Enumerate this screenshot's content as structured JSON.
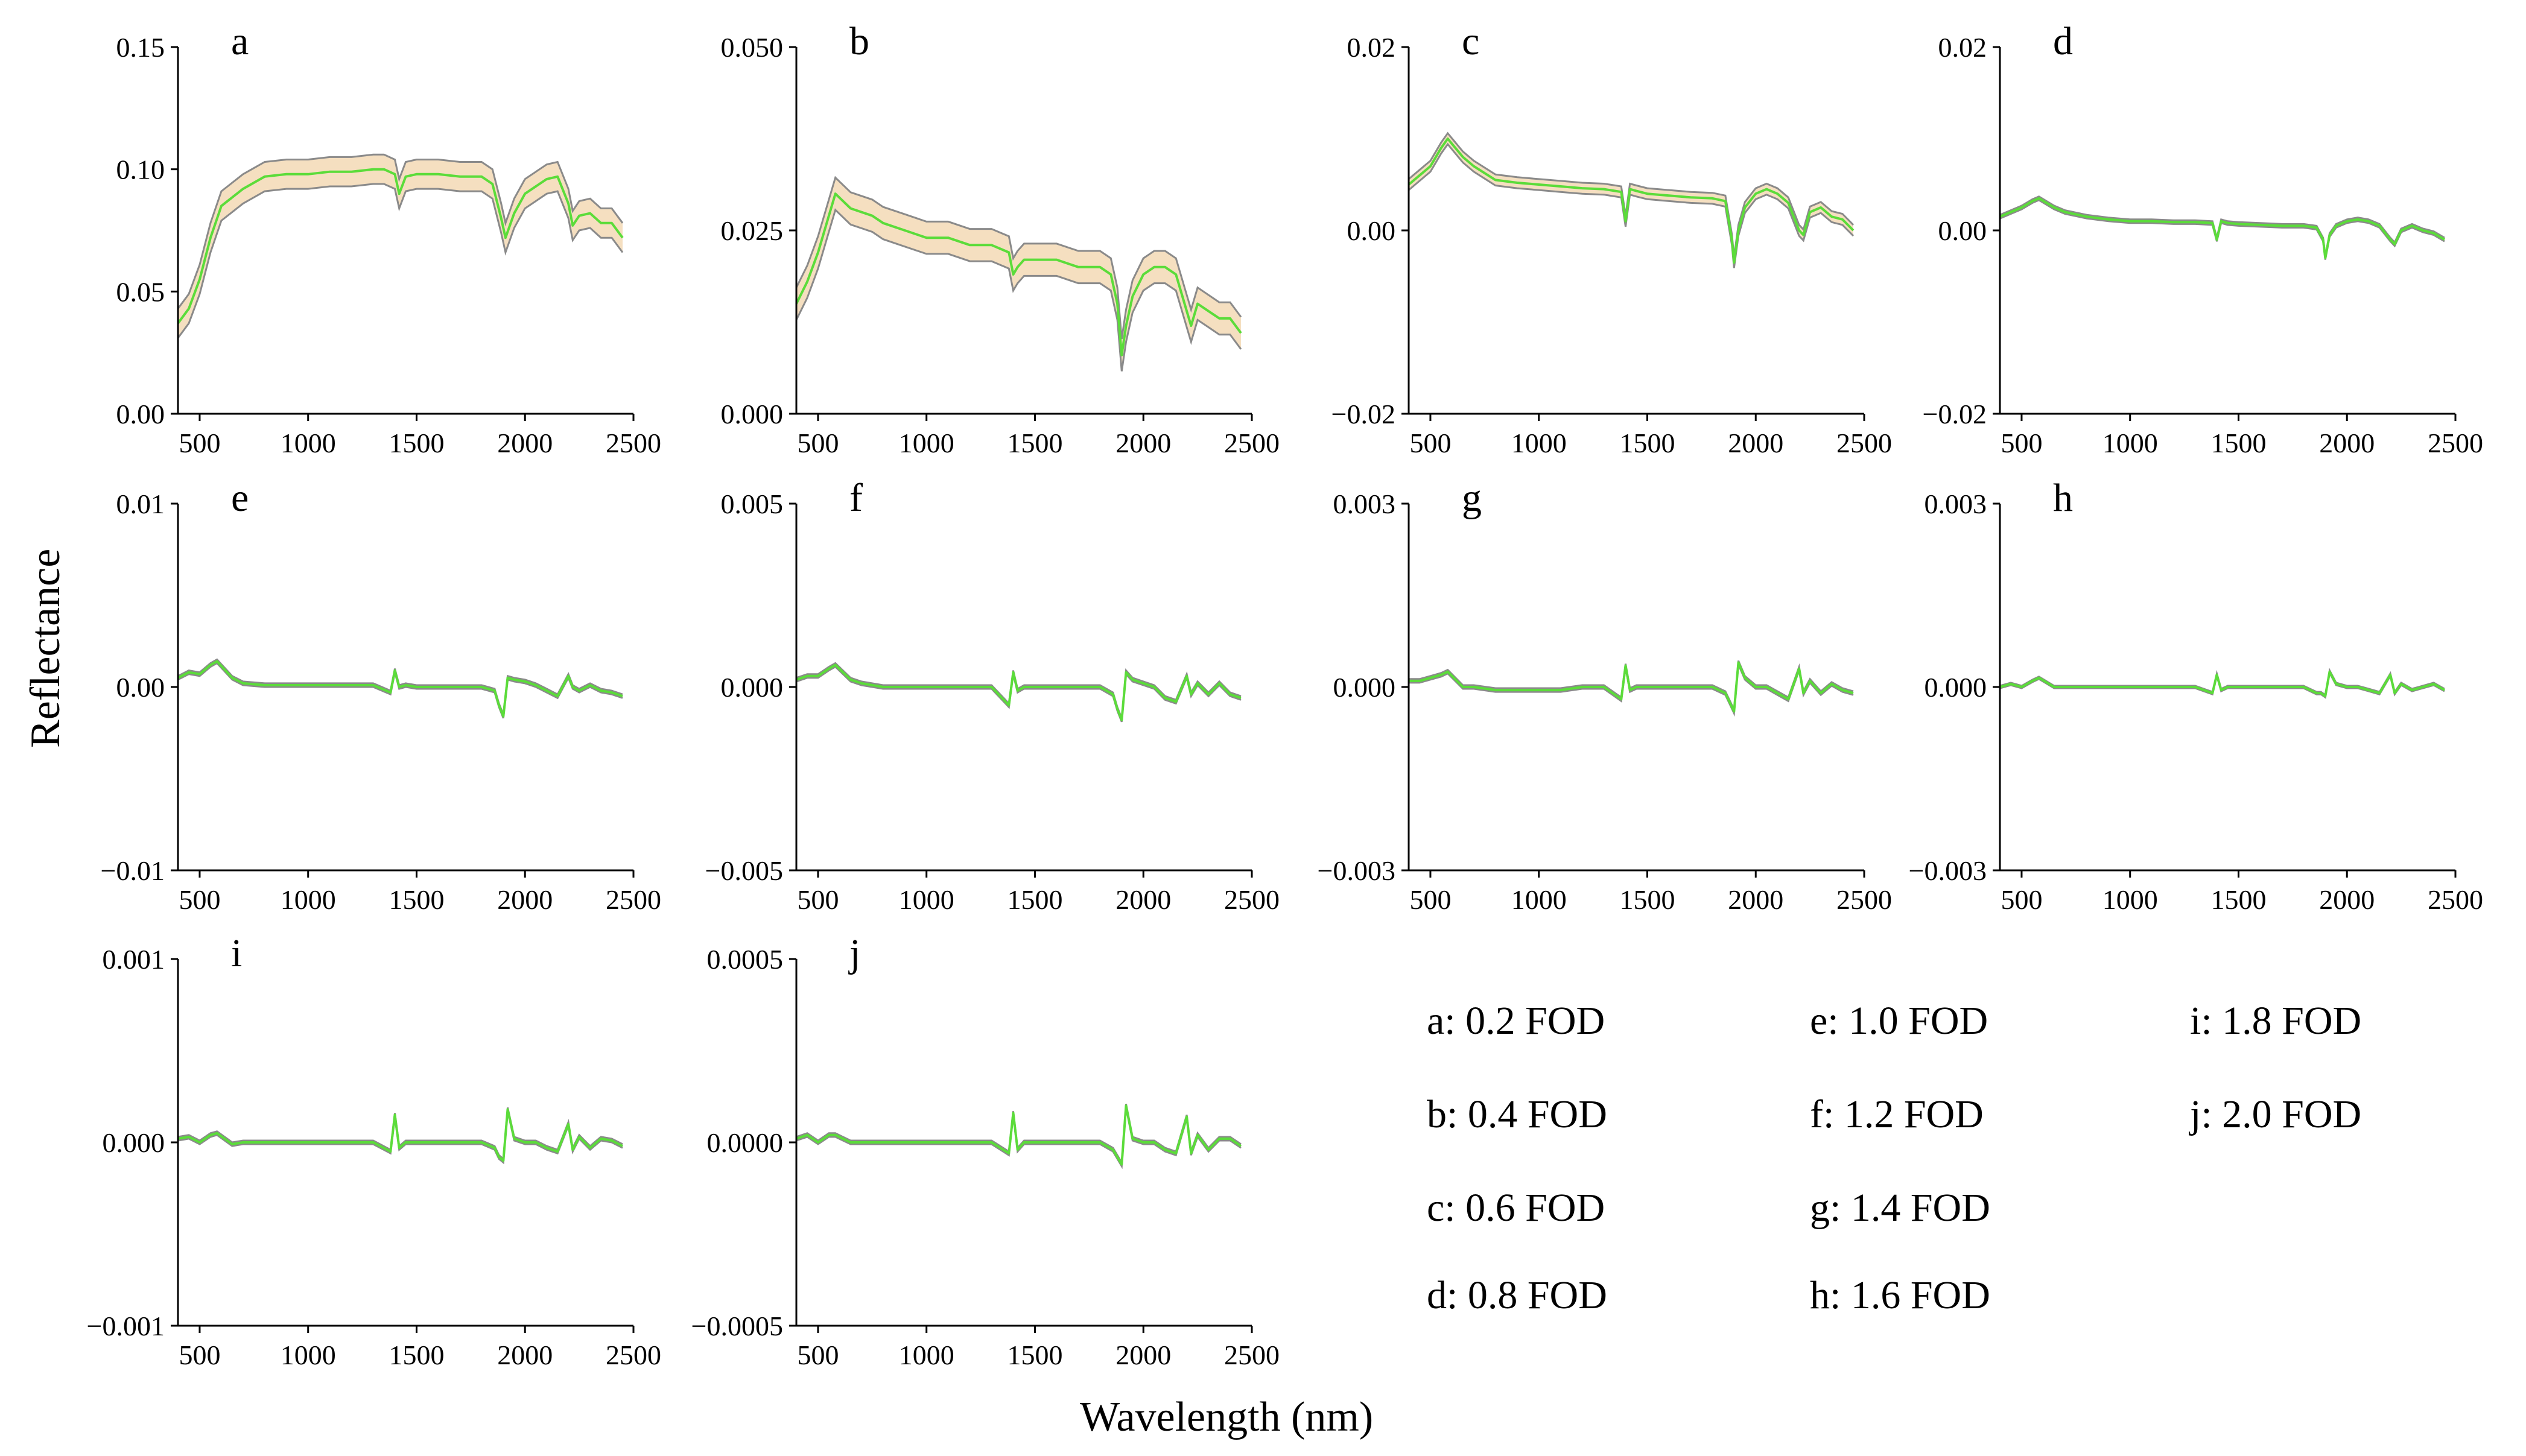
{
  "figure": {
    "ylabel": "Reflectance",
    "xlabel": "Wavelength (nm)",
    "colors": {
      "mean_line": "#5bdc3a",
      "band_fill": "#f5dfc0",
      "band_edge": "#8a8a8a",
      "axis": "#000000"
    }
  },
  "legend": [
    "a: 0.2 FOD",
    "b: 0.4 FOD",
    "c: 0.6 FOD",
    "d: 0.8 FOD",
    "e: 1.0 FOD",
    "f: 1.2 FOD",
    "g: 1.4 FOD",
    "h: 1.6 FOD",
    "i: 1.8 FOD",
    "j: 2.0 FOD"
  ],
  "chart_data": [
    {
      "type": "area",
      "panel": "a",
      "xlim": [
        400,
        2500
      ],
      "xticks": [
        500,
        1000,
        1500,
        2000,
        2500
      ],
      "ylim": [
        0,
        0.15
      ],
      "yticks": [
        0,
        0.05,
        0.1,
        0.15
      ],
      "ytick_labels": [
        "0.00",
        "0.05",
        "0.10",
        "0.15"
      ],
      "band_halfwidth": 0.006,
      "series": {
        "name": "mean",
        "x": [
          400,
          450,
          500,
          550,
          600,
          700,
          800,
          900,
          1000,
          1100,
          1200,
          1300,
          1350,
          1400,
          1420,
          1450,
          1500,
          1600,
          1700,
          1800,
          1850,
          1890,
          1910,
          1950,
          2000,
          2100,
          2150,
          2200,
          2220,
          2250,
          2300,
          2350,
          2400,
          2450
        ],
        "y": [
          0.037,
          0.043,
          0.055,
          0.072,
          0.085,
          0.092,
          0.097,
          0.098,
          0.098,
          0.099,
          0.099,
          0.1,
          0.1,
          0.098,
          0.09,
          0.097,
          0.098,
          0.098,
          0.097,
          0.097,
          0.094,
          0.08,
          0.072,
          0.082,
          0.09,
          0.096,
          0.097,
          0.086,
          0.077,
          0.081,
          0.082,
          0.078,
          0.078,
          0.072
        ]
      }
    },
    {
      "type": "area",
      "panel": "b",
      "xlim": [
        400,
        2500
      ],
      "xticks": [
        500,
        1000,
        1500,
        2000,
        2500
      ],
      "ylim": [
        0,
        0.05
      ],
      "yticks": [
        0,
        0.025,
        0.05
      ],
      "ytick_labels": [
        "0.000",
        "0.025",
        "0.050"
      ],
      "band_halfwidth": 0.0022,
      "series": {
        "name": "mean",
        "x": [
          400,
          450,
          500,
          550,
          580,
          650,
          750,
          800,
          900,
          1000,
          1100,
          1200,
          1300,
          1380,
          1400,
          1420,
          1450,
          1500,
          1600,
          1700,
          1800,
          1850,
          1880,
          1900,
          1920,
          1950,
          2000,
          2050,
          2100,
          2150,
          2200,
          2220,
          2250,
          2300,
          2350,
          2400,
          2450
        ],
        "y": [
          0.015,
          0.018,
          0.022,
          0.027,
          0.03,
          0.028,
          0.027,
          0.026,
          0.025,
          0.024,
          0.024,
          0.023,
          0.023,
          0.022,
          0.019,
          0.02,
          0.021,
          0.021,
          0.021,
          0.02,
          0.02,
          0.019,
          0.015,
          0.008,
          0.012,
          0.016,
          0.019,
          0.02,
          0.02,
          0.019,
          0.014,
          0.012,
          0.015,
          0.014,
          0.013,
          0.013,
          0.011
        ]
      }
    },
    {
      "type": "line",
      "panel": "c",
      "xlim": [
        400,
        2500
      ],
      "xticks": [
        500,
        1000,
        1500,
        2000,
        2500
      ],
      "ylim": [
        -0.02,
        0.02
      ],
      "yticks": [
        -0.02,
        0,
        0.02
      ],
      "ytick_labels": [
        "−0.02",
        "0.00",
        "0.02"
      ],
      "band_halfwidth": 0.0006,
      "series": {
        "name": "mean",
        "x": [
          400,
          450,
          500,
          550,
          580,
          650,
          700,
          800,
          900,
          1000,
          1100,
          1200,
          1300,
          1380,
          1400,
          1420,
          1450,
          1500,
          1600,
          1700,
          1800,
          1860,
          1890,
          1900,
          1920,
          1950,
          2000,
          2050,
          2100,
          2150,
          2200,
          2220,
          2250,
          2300,
          2350,
          2400,
          2450
        ],
        "y": [
          0.005,
          0.006,
          0.007,
          0.009,
          0.01,
          0.008,
          0.007,
          0.0055,
          0.0052,
          0.005,
          0.0048,
          0.0046,
          0.0045,
          0.0042,
          0.001,
          0.0045,
          0.0043,
          0.004,
          0.0038,
          0.0036,
          0.0035,
          0.0032,
          -0.001,
          -0.0035,
          0.0,
          0.0025,
          0.004,
          0.0045,
          0.004,
          0.003,
          0.0,
          -0.0005,
          0.002,
          0.0025,
          0.0015,
          0.0012,
          0.0
        ]
      }
    },
    {
      "type": "line",
      "panel": "d",
      "xlim": [
        400,
        2500
      ],
      "xticks": [
        500,
        1000,
        1500,
        2000,
        2500
      ],
      "ylim": [
        -0.02,
        0.02
      ],
      "yticks": [
        -0.02,
        0,
        0.02
      ],
      "ytick_labels": [
        "−0.02",
        "0.00",
        "0.02"
      ],
      "band_halfwidth": 0.0002,
      "series": {
        "name": "mean",
        "x": [
          400,
          450,
          500,
          550,
          580,
          650,
          700,
          800,
          900,
          1000,
          1100,
          1200,
          1300,
          1380,
          1400,
          1420,
          1450,
          1500,
          1600,
          1700,
          1800,
          1860,
          1890,
          1900,
          1920,
          1950,
          2000,
          2050,
          2100,
          2150,
          2200,
          2220,
          2250,
          2300,
          2350,
          2400,
          2450
        ],
        "y": [
          0.0015,
          0.002,
          0.0025,
          0.0032,
          0.0035,
          0.0025,
          0.002,
          0.0015,
          0.0012,
          0.001,
          0.001,
          0.0009,
          0.0009,
          0.0008,
          -0.001,
          0.001,
          0.0008,
          0.0007,
          0.0006,
          0.0005,
          0.0005,
          0.0003,
          -0.001,
          -0.003,
          -0.0005,
          0.0005,
          0.001,
          0.0012,
          0.001,
          0.0005,
          -0.001,
          -0.0015,
          0.0,
          0.0005,
          0.0,
          -0.0003,
          -0.001
        ]
      }
    },
    {
      "type": "line",
      "panel": "e",
      "xlim": [
        400,
        2500
      ],
      "xticks": [
        500,
        1000,
        1500,
        2000,
        2500
      ],
      "ylim": [
        -0.01,
        0.01
      ],
      "yticks": [
        -0.01,
        0,
        0.01
      ],
      "ytick_labels": [
        "−0.01",
        "0.00",
        "0.01"
      ],
      "band_halfwidth": 0.0001,
      "series": {
        "name": "mean",
        "x": [
          400,
          450,
          500,
          550,
          580,
          650,
          700,
          800,
          900,
          1000,
          1100,
          1200,
          1300,
          1380,
          1400,
          1420,
          1450,
          1500,
          1600,
          1700,
          1800,
          1860,
          1880,
          1900,
          1920,
          1950,
          2000,
          2050,
          2100,
          2150,
          2200,
          2220,
          2250,
          2300,
          2350,
          2400,
          2450
        ],
        "y": [
          0.0005,
          0.0008,
          0.0007,
          0.0012,
          0.0014,
          0.0005,
          0.0002,
          0.0001,
          0.0001,
          0.0001,
          0.0001,
          0.0001,
          0.0001,
          -0.0003,
          0.0009,
          0.0,
          0.0001,
          0.0,
          0.0,
          0.0,
          0.0,
          -0.0002,
          -0.001,
          -0.0016,
          0.0005,
          0.0004,
          0.0003,
          0.0001,
          -0.0002,
          -0.0005,
          0.0006,
          0.0,
          -0.0002,
          0.0001,
          -0.0002,
          -0.0003,
          -0.0005
        ]
      }
    },
    {
      "type": "line",
      "panel": "f",
      "xlim": [
        400,
        2500
      ],
      "xticks": [
        500,
        1000,
        1500,
        2000,
        2500
      ],
      "ylim": [
        -0.005,
        0.005
      ],
      "yticks": [
        -0.005,
        0,
        0.005
      ],
      "ytick_labels": [
        "−0.005",
        "0.000",
        "0.005"
      ],
      "band_halfwidth": 5e-05,
      "series": {
        "name": "mean",
        "x": [
          400,
          450,
          500,
          550,
          580,
          650,
          700,
          800,
          900,
          1000,
          1100,
          1200,
          1300,
          1380,
          1400,
          1420,
          1450,
          1500,
          1600,
          1700,
          1800,
          1860,
          1880,
          1900,
          1920,
          1950,
          2000,
          2050,
          2100,
          2150,
          2200,
          2220,
          2250,
          2300,
          2350,
          2400,
          2450
        ],
        "y": [
          0.0002,
          0.0003,
          0.0003,
          0.0005,
          0.0006,
          0.0002,
          0.0001,
          0.0,
          0.0,
          0.0,
          0.0,
          0.0,
          0.0,
          -0.0005,
          0.0004,
          -0.0001,
          0.0,
          0.0,
          0.0,
          0.0,
          0.0,
          -0.0002,
          -0.0006,
          -0.0009,
          0.0004,
          0.0002,
          0.0001,
          0.0,
          -0.0003,
          -0.0004,
          0.0003,
          -0.0002,
          0.0001,
          -0.0002,
          0.0001,
          -0.0002,
          -0.0003
        ]
      }
    },
    {
      "type": "line",
      "panel": "g",
      "xlim": [
        400,
        2500
      ],
      "xticks": [
        500,
        1000,
        1500,
        2000,
        2500
      ],
      "ylim": [
        -0.003,
        0.003
      ],
      "yticks": [
        -0.003,
        0,
        0.003
      ],
      "ytick_labels": [
        "−0.003",
        "0.000",
        "0.003"
      ],
      "band_halfwidth": 3e-05,
      "series": {
        "name": "mean",
        "x": [
          400,
          450,
          500,
          550,
          580,
          650,
          700,
          800,
          900,
          1000,
          1100,
          1200,
          1300,
          1380,
          1400,
          1420,
          1450,
          1500,
          1600,
          1700,
          1800,
          1860,
          1880,
          1900,
          1920,
          1950,
          2000,
          2050,
          2100,
          2150,
          2200,
          2220,
          2250,
          2300,
          2350,
          2400,
          2450
        ],
        "y": [
          0.0001,
          0.0001,
          0.00015,
          0.0002,
          0.00025,
          0.0,
          0.0,
          -5e-05,
          -5e-05,
          -5e-05,
          -5e-05,
          0.0,
          0.0,
          -0.0002,
          0.00035,
          -5e-05,
          0.0,
          0.0,
          0.0,
          0.0,
          0.0,
          -0.0001,
          -0.00025,
          -0.0004,
          0.0004,
          0.00015,
          0.0,
          0.0,
          -0.0001,
          -0.0002,
          0.0003,
          -0.0001,
          0.0001,
          -0.0001,
          5e-05,
          -5e-05,
          -0.0001
        ]
      }
    },
    {
      "type": "line",
      "panel": "h",
      "xlim": [
        400,
        2500
      ],
      "xticks": [
        500,
        1000,
        1500,
        2000,
        2500
      ],
      "ylim": [
        -0.003,
        0.003
      ],
      "yticks": [
        -0.003,
        0,
        0.003
      ],
      "ytick_labels": [
        "−0.003",
        "0.000",
        "0.003"
      ],
      "band_halfwidth": 2e-05,
      "series": {
        "name": "mean",
        "x": [
          400,
          450,
          500,
          550,
          580,
          650,
          700,
          800,
          900,
          1000,
          1100,
          1200,
          1300,
          1380,
          1400,
          1420,
          1450,
          1500,
          1600,
          1700,
          1800,
          1860,
          1880,
          1900,
          1920,
          1950,
          2000,
          2050,
          2100,
          2150,
          2200,
          2220,
          2250,
          2300,
          2350,
          2400,
          2450
        ],
        "y": [
          0.0,
          5e-05,
          0.0,
          0.0001,
          0.00015,
          0.0,
          0.0,
          0.0,
          0.0,
          0.0,
          0.0,
          0.0,
          0.0,
          -0.0001,
          0.0002,
          -5e-05,
          0.0,
          0.0,
          0.0,
          0.0,
          0.0,
          -0.0001,
          -0.0001,
          -0.00015,
          0.00025,
          5e-05,
          0.0,
          0.0,
          -5e-05,
          -0.0001,
          0.0002,
          -0.0001,
          5e-05,
          -5e-05,
          0.0,
          5e-05,
          -5e-05
        ]
      }
    },
    {
      "type": "line",
      "panel": "i",
      "xlim": [
        400,
        2500
      ],
      "xticks": [
        500,
        1000,
        1500,
        2000,
        2500
      ],
      "ylim": [
        -0.001,
        0.001
      ],
      "yticks": [
        -0.001,
        0,
        0.001
      ],
      "ytick_labels": [
        "−0.001",
        "0.000",
        "0.001"
      ],
      "band_halfwidth": 1e-05,
      "series": {
        "name": "mean",
        "x": [
          400,
          450,
          500,
          550,
          580,
          650,
          700,
          800,
          900,
          1000,
          1100,
          1200,
          1300,
          1380,
          1400,
          1420,
          1450,
          1500,
          1600,
          1700,
          1800,
          1860,
          1880,
          1900,
          1920,
          1950,
          2000,
          2050,
          2100,
          2150,
          2200,
          2220,
          2250,
          2300,
          2350,
          2400,
          2450
        ],
        "y": [
          2e-05,
          3e-05,
          0.0,
          4e-05,
          5e-05,
          -1e-05,
          0.0,
          0.0,
          0.0,
          0.0,
          0.0,
          0.0,
          0.0,
          -5e-05,
          0.00015,
          -3e-05,
          0.0,
          0.0,
          0.0,
          0.0,
          0.0,
          -3e-05,
          -8e-05,
          -0.0001,
          0.00018,
          2e-05,
          0.0,
          0.0,
          -3e-05,
          -5e-05,
          0.0001,
          -4e-05,
          3e-05,
          -3e-05,
          2e-05,
          1e-05,
          -2e-05
        ]
      }
    },
    {
      "type": "line",
      "panel": "j",
      "xlim": [
        400,
        2500
      ],
      "xticks": [
        500,
        1000,
        1500,
        2000,
        2500
      ],
      "ylim": [
        -0.0005,
        0.0005
      ],
      "yticks": [
        -0.0005,
        0,
        0.0005
      ],
      "ytick_labels": [
        "−0.0005",
        "0.0000",
        "0.0005"
      ],
      "band_halfwidth": 5e-06,
      "series": {
        "name": "mean",
        "x": [
          400,
          450,
          500,
          550,
          580,
          650,
          700,
          800,
          900,
          1000,
          1100,
          1200,
          1300,
          1380,
          1400,
          1420,
          1450,
          1500,
          1600,
          1700,
          1800,
          1860,
          1880,
          1900,
          1920,
          1950,
          2000,
          2050,
          2100,
          2150,
          2200,
          2220,
          2250,
          2300,
          2350,
          2400,
          2450
        ],
        "y": [
          1e-05,
          2e-05,
          0.0,
          2e-05,
          2e-05,
          0.0,
          0.0,
          0.0,
          0.0,
          0.0,
          0.0,
          0.0,
          0.0,
          -3e-05,
          8e-05,
          -2e-05,
          0.0,
          0.0,
          0.0,
          0.0,
          0.0,
          -2e-05,
          -4e-05,
          -6e-05,
          0.0001,
          1e-05,
          0.0,
          0.0,
          -2e-05,
          -3e-05,
          7e-05,
          -3e-05,
          2e-05,
          -2e-05,
          1e-05,
          1e-05,
          -1e-05
        ]
      }
    }
  ]
}
